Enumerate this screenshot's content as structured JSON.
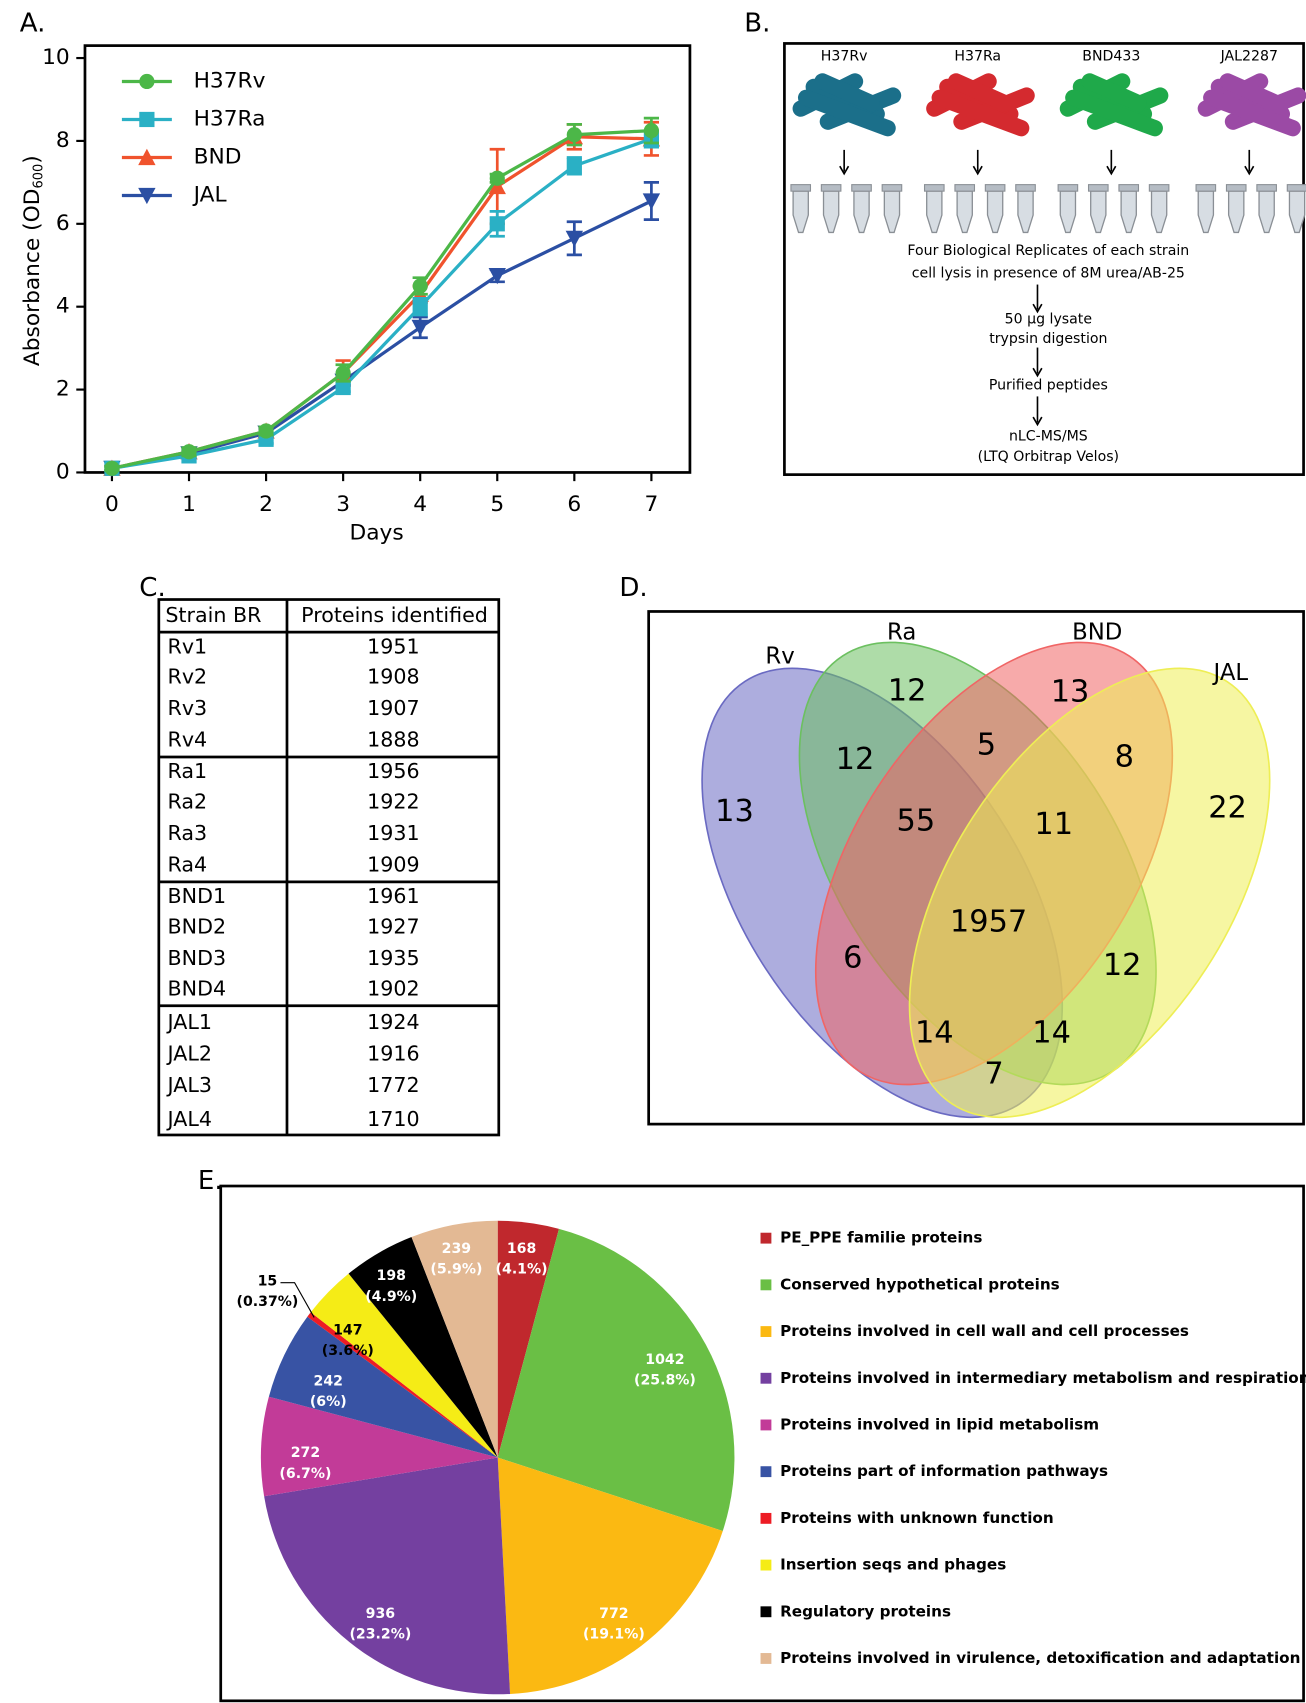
{
  "panel_labels": [
    "A.",
    "B.",
    "C.",
    "D.",
    "E."
  ],
  "chart_data": [
    {
      "type": "line",
      "xlabel": "Days",
      "ylabel": "Absorbance (OD",
      "ylabel_subscript": "600",
      "ylabel_end": ")",
      "x": [
        0,
        1,
        2,
        3,
        4,
        5,
        6,
        7
      ],
      "xlim": [
        -0.35,
        7.5
      ],
      "xticks": [
        0,
        1,
        2,
        3,
        4,
        5,
        6,
        7
      ],
      "ylim": [
        0,
        10.3
      ],
      "yticks": [
        0,
        2,
        4,
        6,
        8,
        10
      ],
      "series": [
        {
          "name": "H37Rv",
          "color": "#4cb748",
          "marker": "circle",
          "values": [
            0.1,
            0.5,
            1.0,
            2.4,
            4.5,
            7.1,
            8.15,
            8.25
          ],
          "errors": [
            0.05,
            0.1,
            0.1,
            0.2,
            0.2,
            0.1,
            0.25,
            0.3
          ]
        },
        {
          "name": "H37Ra",
          "color": "#2ab0c5",
          "marker": "square",
          "values": [
            0.1,
            0.4,
            0.8,
            2.05,
            4.0,
            6.0,
            7.4,
            8.05
          ],
          "errors": [
            0.05,
            0.05,
            0.1,
            0.1,
            0.2,
            0.3,
            0.2,
            0.2
          ]
        },
        {
          "name": "BND",
          "color": "#f0532d",
          "marker": "triangle",
          "values": [
            0.1,
            0.5,
            1.0,
            2.4,
            4.3,
            6.9,
            8.1,
            8.05
          ],
          "errors": [
            0.05,
            0.05,
            0.1,
            0.3,
            0.2,
            0.9,
            0.3,
            0.4
          ]
        },
        {
          "name": "JAL",
          "color": "#2b4fa3",
          "marker": "triangle-down",
          "values": [
            0.1,
            0.45,
            0.95,
            2.2,
            3.5,
            4.75,
            5.65,
            6.55
          ],
          "errors": [
            0.05,
            0.05,
            0.1,
            0.1,
            0.25,
            0.15,
            0.4,
            0.45
          ]
        }
      ]
    },
    {
      "type": "venn",
      "sets": [
        {
          "name": "Rv",
          "color": "#6a6ac2"
        },
        {
          "name": "Ra",
          "color": "#6cc060"
        },
        {
          "name": "BND",
          "color": "#f06565"
        },
        {
          "name": "JAL",
          "color": "#eeee55"
        }
      ],
      "regions": [
        {
          "sets": [
            "Rv"
          ],
          "value": 13
        },
        {
          "sets": [
            "Ra"
          ],
          "value": 12
        },
        {
          "sets": [
            "BND"
          ],
          "value": 13
        },
        {
          "sets": [
            "JAL"
          ],
          "value": 22
        },
        {
          "sets": [
            "Rv",
            "Ra"
          ],
          "value": 12
        },
        {
          "sets": [
            "Ra",
            "BND"
          ],
          "value": 5
        },
        {
          "sets": [
            "BND",
            "JAL"
          ],
          "value": 8
        },
        {
          "sets": [
            "Rv",
            "Ra",
            "BND"
          ],
          "value": 55
        },
        {
          "sets": [
            "Ra",
            "BND",
            "JAL"
          ],
          "value": 11
        },
        {
          "sets": [
            "Rv",
            "Ra",
            "BND",
            "JAL"
          ],
          "value": 1957
        },
        {
          "sets": [
            "Rv",
            "BND"
          ],
          "value": 6
        },
        {
          "sets": [
            "Ra",
            "JAL"
          ],
          "value": 12
        },
        {
          "sets": [
            "Rv",
            "BND",
            "JAL"
          ],
          "value": 14
        },
        {
          "sets": [
            "Rv",
            "Ra",
            "JAL"
          ],
          "value": 14
        },
        {
          "sets": [
            "Rv",
            "JAL"
          ],
          "value": 7
        }
      ]
    },
    {
      "type": "pie",
      "categories": [
        "PE_PPE familie proteins",
        "Conserved hypothetical proteins",
        "Proteins involved in cell wall and cell processes",
        "Proteins involved in intermediary metabolism and respiration",
        "Proteins involved in lipid metabolism",
        "Proteins part of information pathways",
        "Proteins with unknown function",
        "Insertion seqs and phages",
        "Regulatory proteins",
        "Proteins involved in virulence, detoxification and adaptation"
      ],
      "values": [
        168,
        1042,
        772,
        936,
        272,
        242,
        15,
        147,
        198,
        239
      ],
      "percents": [
        4.1,
        25.8,
        19.1,
        23.2,
        6.7,
        6,
        0.37,
        3.6,
        4.9,
        5.9
      ],
      "percent_labels": [
        "(4.1%)",
        "(25.8%)",
        "(19.1%)",
        "(23.2%)",
        "(6.7%)",
        "(6%)",
        "(0.37%)",
        "(3.6%)",
        "(4.9%)",
        "(5.9%)"
      ],
      "colors": [
        "#c0282d",
        "#6abf45",
        "#fbb912",
        "#7440a0",
        "#c23b98",
        "#3853a4",
        "#ed1c24",
        "#f5ec16",
        "#000000",
        "#e3b994"
      ]
    }
  ],
  "workflow": {
    "strains": [
      "H37Rv",
      "H37Ra",
      "BND433",
      "JAL2287"
    ],
    "colors": [
      "#1b6f8a",
      "#d42a2f",
      "#1fa94a",
      "#9b4aa5"
    ],
    "steps": [
      "Four Biological Replicates of each strain",
      "cell lysis  in presence of 8M urea/AB-25",
      "50 μg lysate",
      "trypsin digestion",
      "Purified peptides",
      "nLC-MS/MS",
      "(LTQ Orbitrap Velos)"
    ]
  },
  "table": {
    "header": [
      "Strain BR",
      "Proteins identified"
    ],
    "rows": [
      [
        "Rv1",
        1951
      ],
      [
        "Rv2",
        1908
      ],
      [
        "Rv3",
        1907
      ],
      [
        "Rv4",
        1888
      ],
      [
        "Ra1",
        1956
      ],
      [
        "Ra2",
        1922
      ],
      [
        "Ra3",
        1931
      ],
      [
        "Ra4",
        1909
      ],
      [
        "BND1",
        1961
      ],
      [
        "BND2",
        1927
      ],
      [
        "BND3",
        1935
      ],
      [
        "BND4",
        1902
      ],
      [
        "JAL1",
        1924
      ],
      [
        "JAL2",
        1916
      ],
      [
        "JAL3",
        1772
      ],
      [
        "JAL4",
        1710
      ]
    ]
  }
}
